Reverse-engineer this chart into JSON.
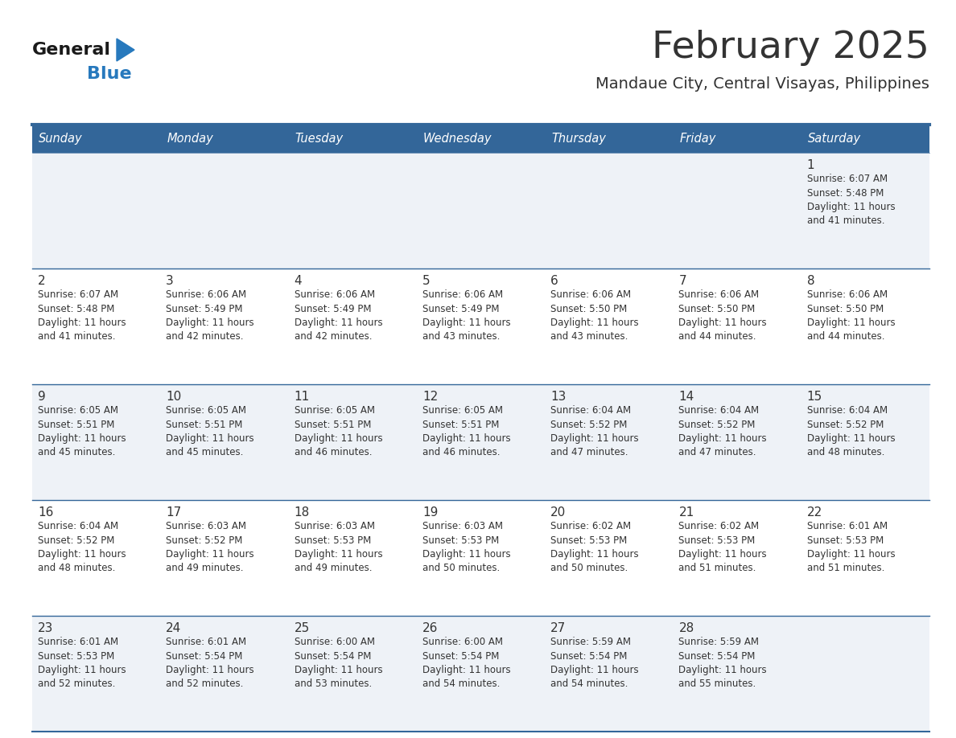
{
  "title": "February 2025",
  "subtitle": "Mandaue City, Central Visayas, Philippines",
  "header_bg": "#336699",
  "header_text_color": "#FFFFFF",
  "day_names": [
    "Sunday",
    "Monday",
    "Tuesday",
    "Wednesday",
    "Thursday",
    "Friday",
    "Saturday"
  ],
  "row_bg_odd": "#EEF2F7",
  "row_bg_even": "#FFFFFF",
  "line_color": "#336699",
  "text_color": "#333333",
  "num_color": "#333333",
  "logo_general_color": "#1a1a1a",
  "logo_blue_color": "#2779BD",
  "calendar": [
    [
      null,
      null,
      null,
      null,
      null,
      null,
      {
        "day": 1,
        "sunrise": "6:07 AM",
        "sunset": "5:48 PM",
        "daylight": "11 hours and 41 minutes."
      }
    ],
    [
      {
        "day": 2,
        "sunrise": "6:07 AM",
        "sunset": "5:48 PM",
        "daylight": "11 hours and 41 minutes."
      },
      {
        "day": 3,
        "sunrise": "6:06 AM",
        "sunset": "5:49 PM",
        "daylight": "11 hours and 42 minutes."
      },
      {
        "day": 4,
        "sunrise": "6:06 AM",
        "sunset": "5:49 PM",
        "daylight": "11 hours and 42 minutes."
      },
      {
        "day": 5,
        "sunrise": "6:06 AM",
        "sunset": "5:49 PM",
        "daylight": "11 hours and 43 minutes."
      },
      {
        "day": 6,
        "sunrise": "6:06 AM",
        "sunset": "5:50 PM",
        "daylight": "11 hours and 43 minutes."
      },
      {
        "day": 7,
        "sunrise": "6:06 AM",
        "sunset": "5:50 PM",
        "daylight": "11 hours and 44 minutes."
      },
      {
        "day": 8,
        "sunrise": "6:06 AM",
        "sunset": "5:50 PM",
        "daylight": "11 hours and 44 minutes."
      }
    ],
    [
      {
        "day": 9,
        "sunrise": "6:05 AM",
        "sunset": "5:51 PM",
        "daylight": "11 hours and 45 minutes."
      },
      {
        "day": 10,
        "sunrise": "6:05 AM",
        "sunset": "5:51 PM",
        "daylight": "11 hours and 45 minutes."
      },
      {
        "day": 11,
        "sunrise": "6:05 AM",
        "sunset": "5:51 PM",
        "daylight": "11 hours and 46 minutes."
      },
      {
        "day": 12,
        "sunrise": "6:05 AM",
        "sunset": "5:51 PM",
        "daylight": "11 hours and 46 minutes."
      },
      {
        "day": 13,
        "sunrise": "6:04 AM",
        "sunset": "5:52 PM",
        "daylight": "11 hours and 47 minutes."
      },
      {
        "day": 14,
        "sunrise": "6:04 AM",
        "sunset": "5:52 PM",
        "daylight": "11 hours and 47 minutes."
      },
      {
        "day": 15,
        "sunrise": "6:04 AM",
        "sunset": "5:52 PM",
        "daylight": "11 hours and 48 minutes."
      }
    ],
    [
      {
        "day": 16,
        "sunrise": "6:04 AM",
        "sunset": "5:52 PM",
        "daylight": "11 hours and 48 minutes."
      },
      {
        "day": 17,
        "sunrise": "6:03 AM",
        "sunset": "5:52 PM",
        "daylight": "11 hours and 49 minutes."
      },
      {
        "day": 18,
        "sunrise": "6:03 AM",
        "sunset": "5:53 PM",
        "daylight": "11 hours and 49 minutes."
      },
      {
        "day": 19,
        "sunrise": "6:03 AM",
        "sunset": "5:53 PM",
        "daylight": "11 hours and 50 minutes."
      },
      {
        "day": 20,
        "sunrise": "6:02 AM",
        "sunset": "5:53 PM",
        "daylight": "11 hours and 50 minutes."
      },
      {
        "day": 21,
        "sunrise": "6:02 AM",
        "sunset": "5:53 PM",
        "daylight": "11 hours and 51 minutes."
      },
      {
        "day": 22,
        "sunrise": "6:01 AM",
        "sunset": "5:53 PM",
        "daylight": "11 hours and 51 minutes."
      }
    ],
    [
      {
        "day": 23,
        "sunrise": "6:01 AM",
        "sunset": "5:53 PM",
        "daylight": "11 hours and 52 minutes."
      },
      {
        "day": 24,
        "sunrise": "6:01 AM",
        "sunset": "5:54 PM",
        "daylight": "11 hours and 52 minutes."
      },
      {
        "day": 25,
        "sunrise": "6:00 AM",
        "sunset": "5:54 PM",
        "daylight": "11 hours and 53 minutes."
      },
      {
        "day": 26,
        "sunrise": "6:00 AM",
        "sunset": "5:54 PM",
        "daylight": "11 hours and 54 minutes."
      },
      {
        "day": 27,
        "sunrise": "5:59 AM",
        "sunset": "5:54 PM",
        "daylight": "11 hours and 54 minutes."
      },
      {
        "day": 28,
        "sunrise": "5:59 AM",
        "sunset": "5:54 PM",
        "daylight": "11 hours and 55 minutes."
      },
      null
    ]
  ]
}
